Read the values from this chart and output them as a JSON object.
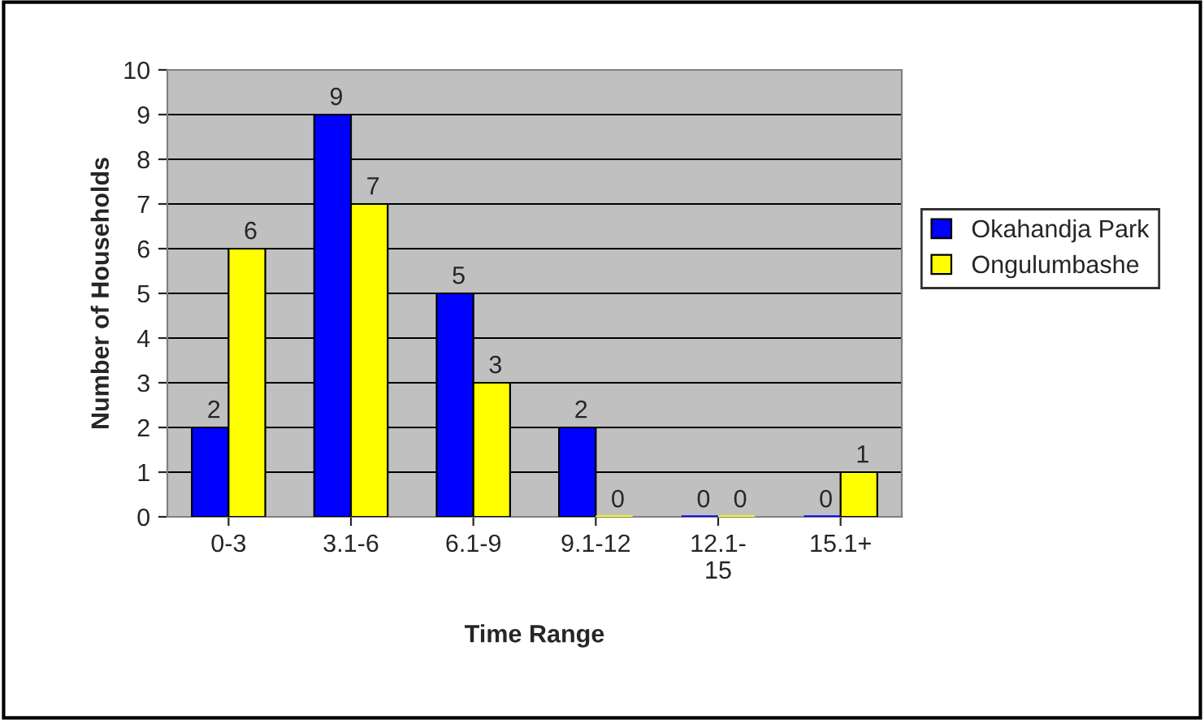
{
  "chart_data": {
    "type": "bar",
    "xlabel": "Time Range",
    "ylabel": "Number of Households",
    "categories": [
      "0-3",
      "3.1-6",
      "6.1-9",
      "9.1-12",
      "12.1-\n15",
      "15.1+"
    ],
    "series": [
      {
        "name": "Okahandja Park",
        "color": "#0000ff",
        "values": [
          2,
          9,
          5,
          2,
          0,
          0
        ]
      },
      {
        "name": "Ongulumbashe",
        "color": "#ffff00",
        "values": [
          6,
          7,
          3,
          0,
          0,
          1
        ]
      }
    ],
    "ylim": [
      0,
      10
    ],
    "yticks": [
      0,
      1,
      2,
      3,
      4,
      5,
      6,
      7,
      8,
      9,
      10
    ],
    "grid": "y",
    "legend": "right",
    "data_labels": true
  }
}
